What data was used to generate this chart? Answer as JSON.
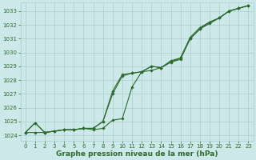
{
  "line1": [
    1024.2,
    1024.9,
    1024.2,
    1024.3,
    1024.4,
    1024.4,
    1024.5,
    1024.5,
    1025.0,
    1027.0,
    1028.3,
    1028.5,
    1028.6,
    1029.0,
    1028.9,
    1029.4,
    1029.6,
    1031.0,
    1031.7,
    1032.1,
    1032.5,
    1033.0,
    1033.2,
    1033.4
  ],
  "line2": [
    1024.2,
    1024.9,
    1024.2,
    1024.3,
    1024.4,
    1024.4,
    1024.5,
    1024.5,
    1025.0,
    1027.2,
    1028.4,
    1028.5,
    1028.6,
    1029.0,
    1028.9,
    1029.3,
    1029.5,
    1031.0,
    1031.7,
    1032.2,
    1032.5,
    1033.0,
    1033.2,
    1033.4
  ],
  "line3": [
    1024.2,
    1024.2,
    1024.2,
    1024.3,
    1024.4,
    1024.4,
    1024.5,
    1024.4,
    1024.5,
    1025.1,
    1025.2,
    1027.5,
    1028.6,
    1028.7,
    1028.9,
    1029.3,
    1029.6,
    1031.1,
    1031.8,
    1032.2,
    1032.5,
    1033.0,
    1033.2,
    1033.4
  ],
  "x": [
    0,
    1,
    2,
    3,
    4,
    5,
    6,
    7,
    8,
    9,
    10,
    11,
    12,
    13,
    14,
    15,
    16,
    17,
    18,
    19,
    20,
    21,
    22,
    23
  ],
  "ylim": [
    1023.6,
    1033.6
  ],
  "yticks": [
    1024,
    1025,
    1026,
    1027,
    1028,
    1029,
    1030,
    1031,
    1032,
    1033
  ],
  "xticks": [
    0,
    1,
    2,
    3,
    4,
    5,
    6,
    7,
    8,
    9,
    10,
    11,
    12,
    13,
    14,
    15,
    16,
    17,
    18,
    19,
    20,
    21,
    22,
    23
  ],
  "xlabel": "Graphe pression niveau de la mer (hPa)",
  "line_color": "#2d6a2d",
  "marker": "D",
  "markersize": 1.8,
  "bg_color": "#cce8e8",
  "grid_color": "#aacece",
  "linewidth": 0.8,
  "tick_fontsize": 5.0,
  "xlabel_fontsize": 6.5,
  "xlim": [
    -0.5,
    23.5
  ]
}
